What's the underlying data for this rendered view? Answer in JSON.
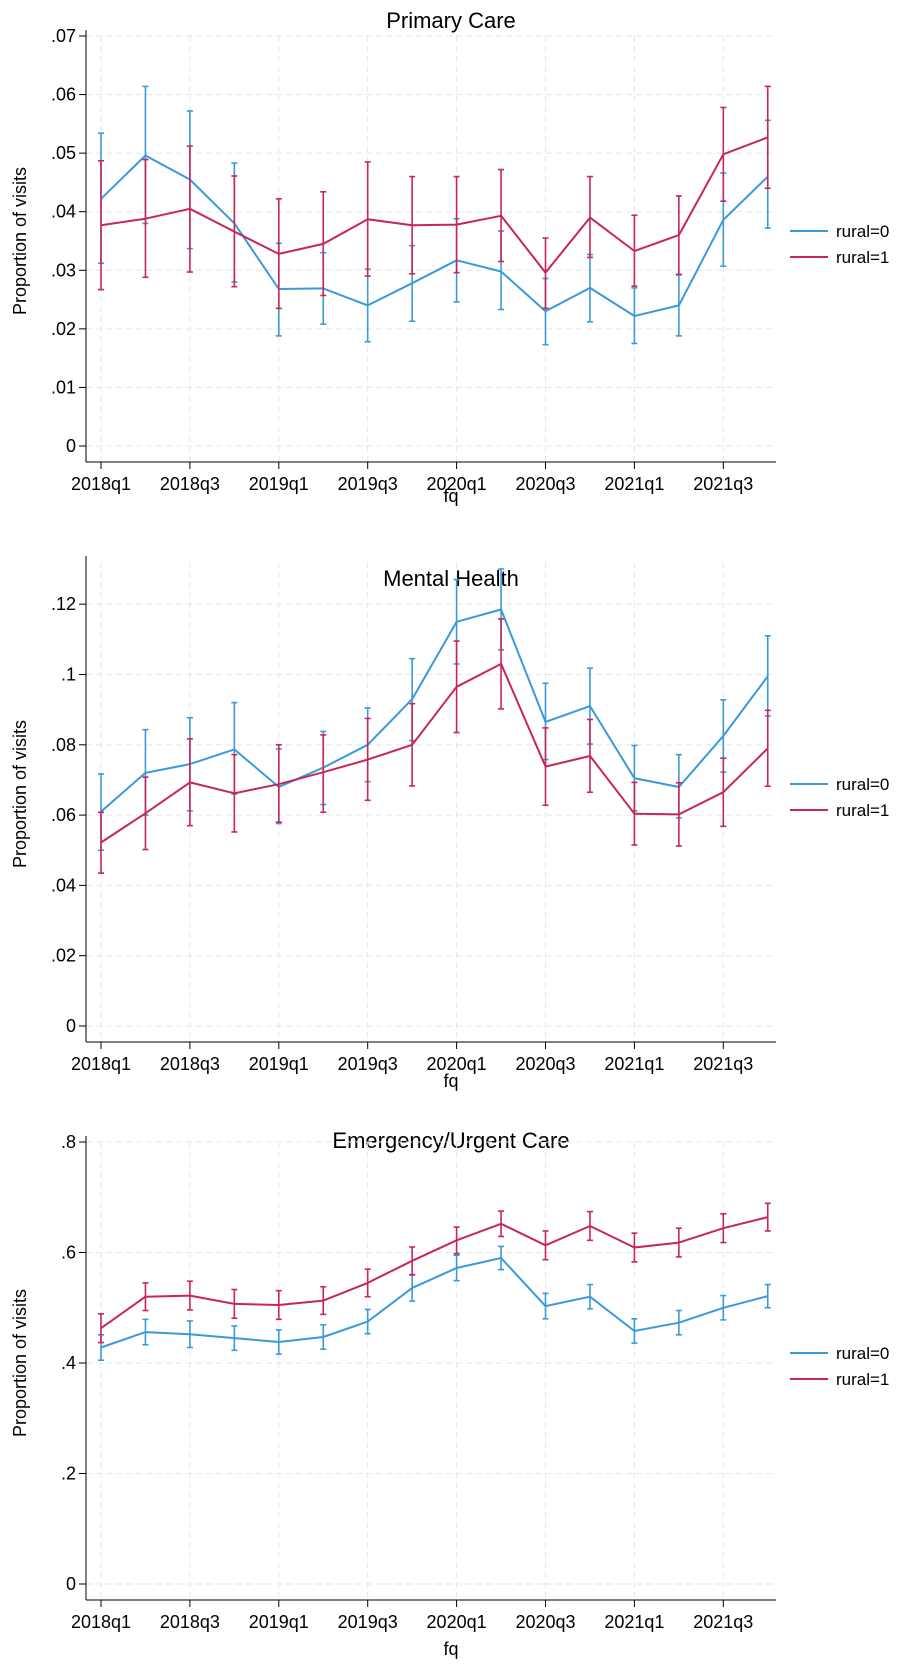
{
  "chart_data": [
    {
      "type": "line",
      "title": "Primary Care",
      "xlabel": "fq",
      "ylabel": "Proportion of visits",
      "x": [
        "2018q1",
        "2018q2",
        "2018q3",
        "2018q4",
        "2019q1",
        "2019q2",
        "2019q3",
        "2019q4",
        "2020q1",
        "2020q2",
        "2020q3",
        "2020q4",
        "2021q1",
        "2021q2",
        "2021q3",
        "2021q4"
      ],
      "xticks": [
        "2018q1",
        "2018q3",
        "2019q1",
        "2019q3",
        "2020q1",
        "2020q3",
        "2021q1",
        "2021q3"
      ],
      "ylim": [
        0,
        0.07
      ],
      "yticks": [
        0,
        0.01,
        0.02,
        0.03,
        0.04,
        0.05,
        0.06,
        0.07
      ],
      "ytick_labels": [
        "0",
        ".01",
        ".02",
        ".03",
        ".04",
        ".05",
        ".06",
        ".07"
      ],
      "legend_position": "right",
      "grid": true,
      "series": [
        {
          "name": "rural=0",
          "color": "#3a9ad9",
          "values": [
            0.0422,
            0.0496,
            0.0455,
            0.038,
            0.0268,
            0.0269,
            0.024,
            0.0278,
            0.0317,
            0.0298,
            0.023,
            0.027,
            0.0222,
            0.024,
            0.0386,
            0.046
          ],
          "lower": [
            0.0312,
            0.038,
            0.0337,
            0.028,
            0.0188,
            0.0208,
            0.0178,
            0.0213,
            0.0246,
            0.0233,
            0.0173,
            0.0212,
            0.0175,
            0.0188,
            0.0307,
            0.0372
          ],
          "upper": [
            0.0534,
            0.0614,
            0.0572,
            0.0483,
            0.0346,
            0.033,
            0.0302,
            0.0342,
            0.0388,
            0.0367,
            0.0286,
            0.0327,
            0.027,
            0.0292,
            0.0466,
            0.0556
          ]
        },
        {
          "name": "rural=1",
          "color": "#c8255a",
          "values": [
            0.0377,
            0.0388,
            0.0405,
            0.0366,
            0.0328,
            0.0345,
            0.0387,
            0.0377,
            0.0378,
            0.0393,
            0.0296,
            0.039,
            0.0333,
            0.036,
            0.0498,
            0.0527
          ],
          "lower": [
            0.0267,
            0.0288,
            0.0297,
            0.0272,
            0.0235,
            0.0257,
            0.029,
            0.0294,
            0.0296,
            0.0315,
            0.0235,
            0.0322,
            0.0273,
            0.0293,
            0.0418,
            0.044
          ],
          "upper": [
            0.0487,
            0.0489,
            0.0512,
            0.0461,
            0.0422,
            0.0434,
            0.0485,
            0.046,
            0.046,
            0.0472,
            0.0355,
            0.046,
            0.0394,
            0.0427,
            0.0578,
            0.0614
          ]
        }
      ]
    },
    {
      "type": "line",
      "title": "Mental Health",
      "xlabel": "fq",
      "ylabel": "Proportion of visits",
      "x": [
        "2018q1",
        "2018q2",
        "2018q3",
        "2018q4",
        "2019q1",
        "2019q2",
        "2019q3",
        "2019q4",
        "2020q1",
        "2020q2",
        "2020q3",
        "2020q4",
        "2021q1",
        "2021q2",
        "2021q3",
        "2021q4"
      ],
      "xticks": [
        "2018q1",
        "2018q3",
        "2019q1",
        "2019q3",
        "2020q1",
        "2020q3",
        "2021q1",
        "2021q3"
      ],
      "ylim": [
        0,
        0.132
      ],
      "yticks": [
        0,
        0.02,
        0.04,
        0.06,
        0.08,
        0.1,
        0.12
      ],
      "ytick_labels": [
        "0",
        ".02",
        ".04",
        ".06",
        ".08",
        ".1",
        ".12"
      ],
      "legend_position": "right",
      "grid": true,
      "series": [
        {
          "name": "rural=0",
          "color": "#3a9ad9",
          "values": [
            0.061,
            0.072,
            0.0745,
            0.0787,
            0.068,
            0.0735,
            0.08,
            0.093,
            0.115,
            0.1185,
            0.0865,
            0.091,
            0.0705,
            0.068,
            0.0825,
            0.0995
          ],
          "lower": [
            0.05,
            0.06,
            0.0612,
            0.066,
            0.0576,
            0.063,
            0.0695,
            0.0812,
            0.103,
            0.107,
            0.0758,
            0.0802,
            0.0612,
            0.0592,
            0.0722,
            0.0882
          ],
          "upper": [
            0.0717,
            0.0843,
            0.0877,
            0.092,
            0.0788,
            0.0838,
            0.0905,
            0.1045,
            0.127,
            0.13,
            0.0975,
            0.1018,
            0.0798,
            0.0772,
            0.0928,
            0.111
          ]
        },
        {
          "name": "rural=1",
          "color": "#c8255a",
          "values": [
            0.0522,
            0.0605,
            0.0693,
            0.0662,
            0.0688,
            0.0722,
            0.0758,
            0.08,
            0.0965,
            0.103,
            0.0738,
            0.0768,
            0.0604,
            0.0602,
            0.0665,
            0.079
          ],
          "lower": [
            0.0435,
            0.0502,
            0.057,
            0.0552,
            0.058,
            0.0608,
            0.0642,
            0.0683,
            0.0835,
            0.0902,
            0.0628,
            0.0665,
            0.0515,
            0.0512,
            0.0568,
            0.0682
          ],
          "upper": [
            0.0608,
            0.0708,
            0.0817,
            0.0772,
            0.08,
            0.0828,
            0.0875,
            0.0917,
            0.1095,
            0.1158,
            0.0848,
            0.0872,
            0.0693,
            0.0692,
            0.0762,
            0.0898
          ]
        }
      ]
    },
    {
      "type": "line",
      "title": "Emergency/Urgent Care",
      "xlabel": "fq",
      "ylabel": "Proportion of visits",
      "x": [
        "2018q1",
        "2018q2",
        "2018q3",
        "2018q4",
        "2019q1",
        "2019q2",
        "2019q3",
        "2019q4",
        "2020q1",
        "2020q2",
        "2020q3",
        "2020q4",
        "2021q1",
        "2021q2",
        "2021q3",
        "2021q4"
      ],
      "xticks": [
        "2018q1",
        "2018q3",
        "2019q1",
        "2019q3",
        "2020q1",
        "2020q3",
        "2021q1",
        "2021q3"
      ],
      "ylim": [
        0,
        0.8
      ],
      "yticks": [
        0,
        0.2,
        0.4,
        0.6,
        0.8
      ],
      "ytick_labels": [
        "0",
        ".2",
        ".4",
        ".6",
        ".8"
      ],
      "legend_position": "right",
      "grid": true,
      "series": [
        {
          "name": "rural=0",
          "color": "#3a9ad9",
          "values": [
            0.428,
            0.456,
            0.452,
            0.445,
            0.438,
            0.447,
            0.475,
            0.536,
            0.572,
            0.59,
            0.503,
            0.52,
            0.458,
            0.473,
            0.5,
            0.521
          ],
          "lower": [
            0.405,
            0.433,
            0.428,
            0.423,
            0.416,
            0.425,
            0.453,
            0.512,
            0.549,
            0.569,
            0.48,
            0.498,
            0.436,
            0.451,
            0.478,
            0.5
          ],
          "upper": [
            0.451,
            0.479,
            0.476,
            0.467,
            0.46,
            0.469,
            0.497,
            0.559,
            0.595,
            0.611,
            0.526,
            0.542,
            0.48,
            0.495,
            0.522,
            0.542
          ]
        },
        {
          "name": "rural=1",
          "color": "#c8255a",
          "values": [
            0.463,
            0.52,
            0.522,
            0.507,
            0.505,
            0.513,
            0.545,
            0.585,
            0.622,
            0.652,
            0.613,
            0.648,
            0.609,
            0.618,
            0.644,
            0.664
          ],
          "lower": [
            0.437,
            0.495,
            0.496,
            0.481,
            0.479,
            0.488,
            0.52,
            0.56,
            0.598,
            0.629,
            0.587,
            0.622,
            0.583,
            0.592,
            0.618,
            0.639
          ],
          "upper": [
            0.489,
            0.545,
            0.548,
            0.533,
            0.531,
            0.538,
            0.57,
            0.61,
            0.646,
            0.675,
            0.639,
            0.674,
            0.635,
            0.644,
            0.67,
            0.689
          ]
        }
      ]
    }
  ]
}
